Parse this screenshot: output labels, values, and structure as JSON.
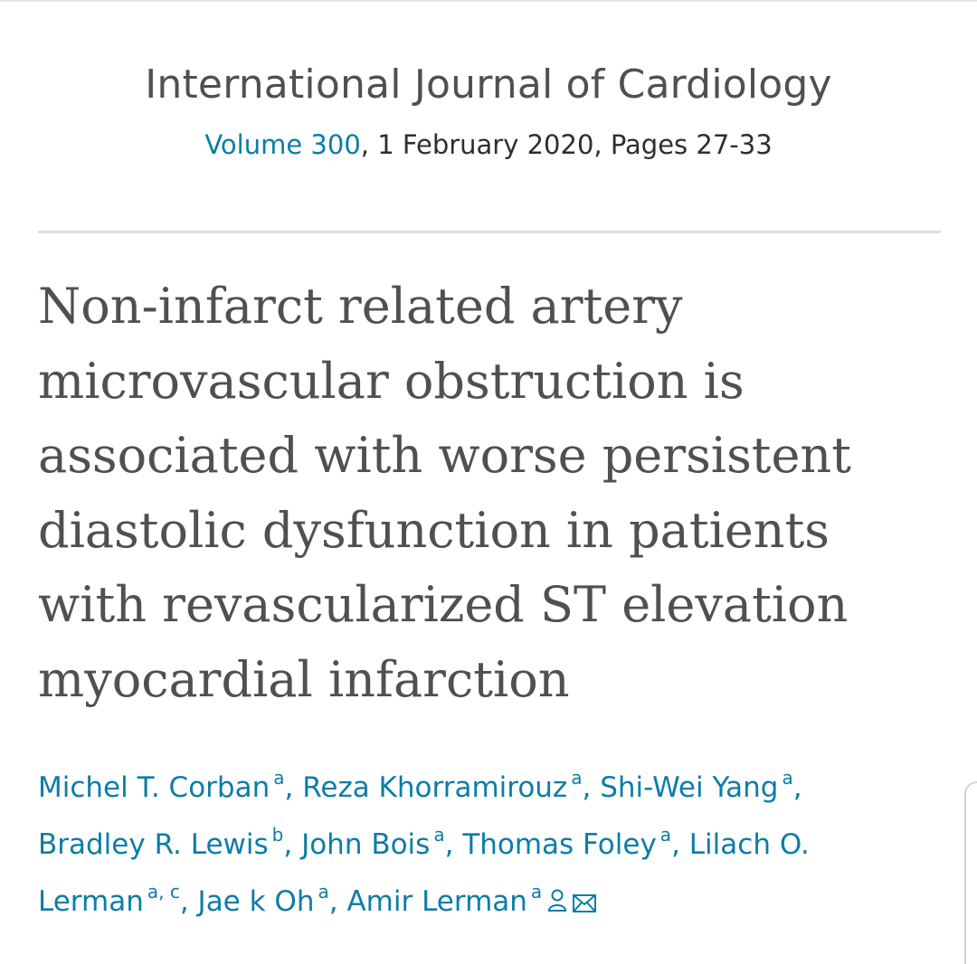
{
  "journal": {
    "title": "International Journal of Cardiology",
    "volume_label": "Volume 300",
    "issue_info": ", 1 February 2020, Pages 27-33"
  },
  "article": {
    "title_lines": [
      "Non-infarct related artery",
      "microvascular obstruction is",
      "associated with worse persistent",
      "diastolic dysfunction in patients",
      "with revascularized ST elevation",
      "myocardial infarction"
    ]
  },
  "authors": [
    {
      "name": "Michel T. Corban",
      "affiliation": "a"
    },
    {
      "name": "Reza Khorramirouz",
      "affiliation": "a"
    },
    {
      "name": "Shi-Wei Yang",
      "affiliation": "a"
    },
    {
      "name": "Bradley R. Lewis",
      "affiliation": "b"
    },
    {
      "name": "John Bois",
      "affiliation": "a"
    },
    {
      "name": "Thomas Foley",
      "affiliation": "a"
    },
    {
      "name": "Lilach O.",
      "name_cont": "Lerman",
      "affiliation": "a",
      "affiliation2": "c"
    },
    {
      "name": "Jae k Oh",
      "affiliation": "a"
    },
    {
      "name": "Amir Lerman",
      "affiliation": "a"
    }
  ],
  "icons": {
    "corresponding": "person-icon",
    "email": "envelope-icon"
  },
  "colors": {
    "link": "#0c7da7",
    "title_text": "#505050",
    "body_text": "#2e2e2e",
    "divider": "#dedede"
  }
}
